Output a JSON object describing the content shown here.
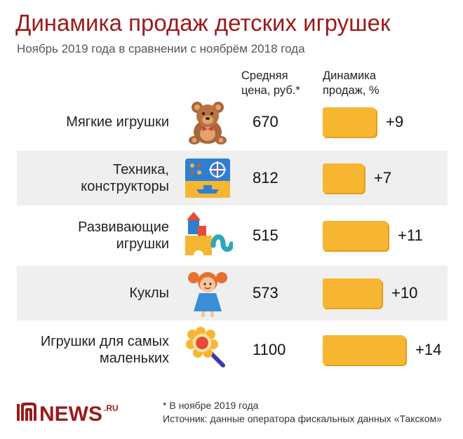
{
  "title": "Динамика продаж детских игрушек",
  "subtitle": "Ноябрь 2019 года в сравнении с ноябрём 2018 года",
  "col_price": [
    "Средняя",
    "цена, руб.*"
  ],
  "col_change": [
    "Динамика",
    "продаж, %"
  ],
  "chart_data": {
    "type": "bar",
    "categories": [
      "Мягкие игрушки",
      "Техника, конструкторы",
      "Развивающие игрушки",
      "Куклы",
      "Игрушки для самых маленьких"
    ],
    "category_lines": [
      [
        "Мягкие игрушки"
      ],
      [
        "Техника,",
        "конструкторы"
      ],
      [
        "Развивающие",
        "игрушки"
      ],
      [
        "Куклы"
      ],
      [
        "Игрушки для самых",
        "маленьких"
      ]
    ],
    "avg_price": [
      "670",
      "812",
      "515",
      "573",
      "1100"
    ],
    "series": [
      {
        "values": [
          9,
          7,
          11,
          10,
          14
        ]
      }
    ],
    "value_labels": [
      "+9",
      "+7",
      "+11",
      "+10",
      "+14"
    ],
    "bar_color": "#f7b632"
  },
  "icons": [
    "teddy-bear-icon",
    "toy-tech-icon",
    "building-blocks-icon",
    "doll-icon",
    "baby-rattle-icon"
  ],
  "logo": {
    "text": "NEWS",
    "suffix": ".RU",
    "color": "#9b1b1b"
  },
  "footnote": "* В ноябре 2019 года",
  "source": "Источник: данные оператора фискальных данных «Такском»"
}
